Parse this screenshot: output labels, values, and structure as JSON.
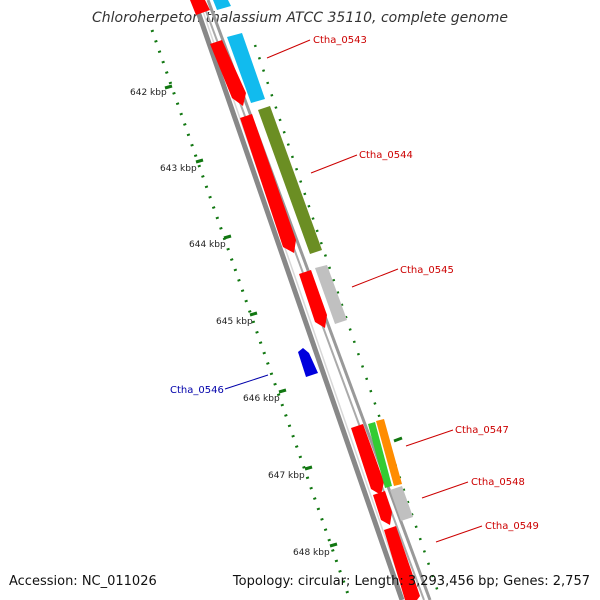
{
  "title": "Chloroherpeton thalassium ATCC 35110, complete genome",
  "accession_text": "Accession: NC_011026",
  "summary_text": "Topology: circular; Length: 3,293,456 bp; Genes: 2,757",
  "scale_labels": [
    "642 kbp",
    "643 kbp",
    "644 kbp",
    "645 kbp",
    "646 kbp",
    "647 kbp",
    "648 kbp"
  ],
  "gene_labels": [
    {
      "text": "Ctha_0543",
      "color": "#cc0000"
    },
    {
      "text": "Ctha_0544",
      "color": "#cc0000"
    },
    {
      "text": "Ctha_0545",
      "color": "#cc0000"
    },
    {
      "text": "Ctha_0546",
      "color": "#0000aa"
    },
    {
      "text": "Ctha_0547",
      "color": "#cc0000"
    },
    {
      "text": "Ctha_0548",
      "color": "#cc0000"
    },
    {
      "text": "Ctha_0549",
      "color": "#cc0000"
    }
  ],
  "colors": {
    "backbone": "#888888",
    "gene_red": "#ff0000",
    "gene_blue": "#0000dd",
    "cyan": "#11bbee",
    "olive": "#6b8e23",
    "grey": "#c0c0c0",
    "green": "#33cc33",
    "orange": "#ff8c00",
    "tick_green": "#117711"
  }
}
